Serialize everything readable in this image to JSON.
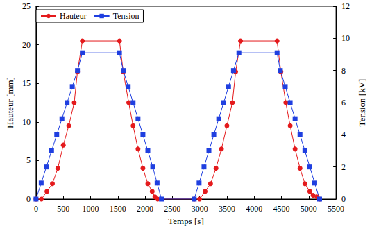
{
  "chart_data": {
    "type": "line",
    "xlabel": "Temps [s]",
    "ylabel": "Hauteur [mm]",
    "y2label": "Tension [kV]",
    "xlim": [
      0,
      5500
    ],
    "xticks": [
      0,
      500,
      1000,
      1500,
      2000,
      2500,
      3000,
      3500,
      4000,
      4500,
      5000,
      5500
    ],
    "ylim": [
      0,
      25
    ],
    "yticks": [
      0,
      5,
      10,
      15,
      20,
      25
    ],
    "y2lim": [
      0,
      12
    ],
    "y2ticks": [
      0,
      2,
      4,
      6,
      8,
      10,
      12
    ],
    "legend": "upper left",
    "grid": false,
    "series": [
      {
        "name": "Hauteur",
        "color": "#e41a1c",
        "marker": "circle",
        "x": [
          0,
          100,
          200,
          300,
          400,
          500,
          600,
          700,
          760,
          850,
          1530,
          1600,
          1700,
          1780,
          1870,
          1960,
          2050,
          2130,
          2180,
          2230,
          2900,
          3000,
          3100,
          3200,
          3300,
          3400,
          3500,
          3600,
          3660,
          3750,
          4420,
          4490,
          4580,
          4660,
          4750,
          4840,
          4930,
          5020,
          5080,
          5150,
          5200
        ],
        "values": [
          0,
          0,
          1,
          2,
          4,
          7,
          9.5,
          12.5,
          16.5,
          20.5,
          20.5,
          16.5,
          12.5,
          9.5,
          6.5,
          4,
          2,
          1,
          0.3,
          0,
          0,
          0,
          1,
          2,
          4,
          6.5,
          9.5,
          12.5,
          16.5,
          20.5,
          20.5,
          16.5,
          12.5,
          9.5,
          6.5,
          4,
          2,
          1,
          0.5,
          0.3,
          0
        ]
      },
      {
        "name": "Tension",
        "color": "#1f3fe0",
        "marker": "square",
        "axis": "y2",
        "x": [
          0,
          95,
          190,
          285,
          380,
          475,
          570,
          665,
          760,
          850,
          1530,
          1600,
          1690,
          1780,
          1870,
          1960,
          2050,
          2140,
          2220,
          2300,
          2900,
          2990,
          3080,
          3170,
          3260,
          3350,
          3440,
          3530,
          3620,
          3720,
          4420,
          4480,
          4570,
          4660,
          4750,
          4840,
          4930,
          5020,
          5110,
          5200
        ],
        "values": [
          0,
          1,
          2,
          3,
          4,
          5,
          6,
          7,
          8,
          9.1,
          9.1,
          8,
          7,
          6,
          5,
          4,
          3,
          2,
          1,
          0,
          0,
          1,
          2,
          3,
          4,
          5,
          6,
          7,
          8,
          9.1,
          9.1,
          8,
          7,
          6,
          5,
          4,
          3,
          2,
          1,
          0
        ]
      }
    ]
  }
}
